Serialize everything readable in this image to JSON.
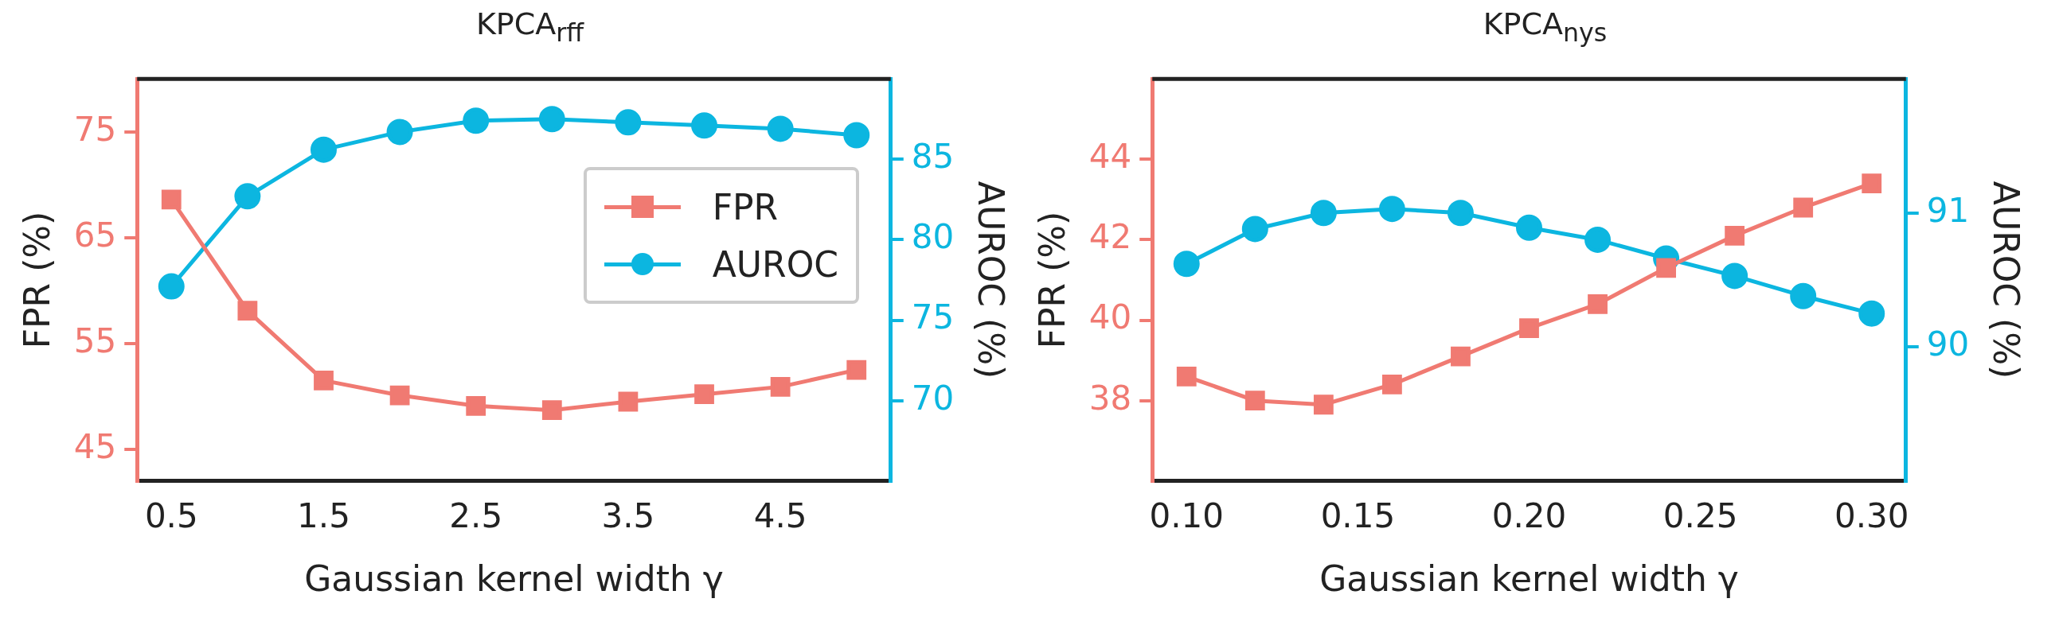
{
  "chart_data": [
    {
      "type": "line",
      "title": "KPCA$_{rff}$",
      "xlabel": "Gaussian kernel width γ",
      "ylabel": "FPR (%)",
      "y2label": "AUROC (%)",
      "x": [
        0.5,
        1.0,
        1.5,
        2.0,
        2.5,
        3.0,
        3.5,
        4.0,
        4.5,
        5.0
      ],
      "xlim": [
        0.275,
        5.225
      ],
      "xticks": [
        0.5,
        1.5,
        2.5,
        3.5,
        4.5
      ],
      "ylim": [
        42,
        80
      ],
      "yticks": [
        45,
        55,
        65,
        75
      ],
      "y2lim": [
        65,
        90
      ],
      "y2ticks": [
        70,
        75,
        80,
        85
      ],
      "legend": "center right",
      "series": [
        {
          "name": "FPR",
          "color": "#f07a72",
          "marker": "square",
          "values": [
            68.6,
            58.1,
            51.5,
            50.1,
            49.1,
            48.7,
            49.5,
            50.2,
            50.9,
            52.5
          ]
        },
        {
          "name": "AUROC",
          "color": "#0cb6e0",
          "marker": "circle",
          "axis": "y2",
          "values": [
            77.1,
            82.7,
            85.6,
            86.7,
            87.4,
            87.5,
            87.3,
            87.1,
            86.9,
            86.5
          ]
        }
      ]
    },
    {
      "type": "line",
      "title": "KPCA$_{nys}$",
      "xlabel": "Gaussian kernel width γ",
      "ylabel": "FPR (%)",
      "y2label": "AUROC (%)",
      "x": [
        0.1,
        0.12,
        0.14,
        0.16,
        0.18,
        0.2,
        0.22,
        0.24,
        0.26,
        0.28,
        0.3
      ],
      "xlim": [
        0.09,
        0.31
      ],
      "xticks": [
        {
          "value": 0.1,
          "label": "0.10"
        },
        {
          "value": 0.15,
          "label": "0.15"
        },
        {
          "value": 0.2,
          "label": "0.20"
        },
        {
          "value": 0.25,
          "label": "0.25"
        },
        {
          "value": 0.3,
          "label": "0.30"
        }
      ],
      "ylim": [
        36,
        46
      ],
      "yticks": [
        38,
        40,
        42,
        44
      ],
      "y2lim": [
        89,
        92
      ],
      "y2ticks": [
        90,
        91
      ],
      "series": [
        {
          "color": "#f07a72",
          "marker": "square",
          "values": [
            38.6,
            38.0,
            37.9,
            38.4,
            39.1,
            39.8,
            40.4,
            41.3,
            42.1,
            42.8,
            43.4
          ]
        },
        {
          "color": "#0cb6e0",
          "marker": "circle",
          "axis": "y2",
          "values": [
            90.62,
            90.88,
            91.0,
            91.03,
            91.0,
            90.89,
            90.8,
            90.66,
            90.53,
            90.38,
            90.25
          ]
        }
      ]
    }
  ]
}
